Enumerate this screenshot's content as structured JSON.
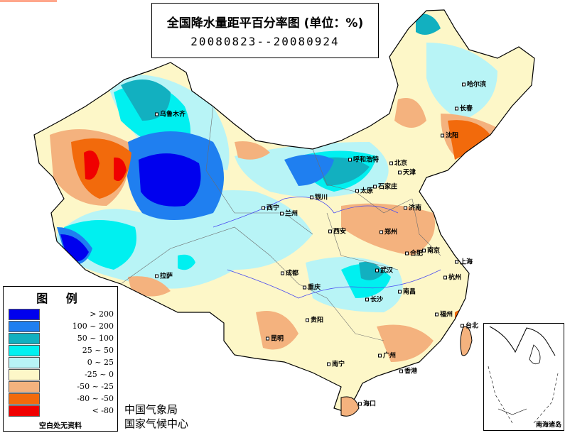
{
  "title": "全国降水量距平百分率图 (单位：%)",
  "date_range": "20080823--20080924",
  "legend": {
    "title": "图 例",
    "items": [
      {
        "range": "> 200",
        "color": "#0000ee"
      },
      {
        "range": "100 ~ 200",
        "color": "#1f7ff0"
      },
      {
        "range": "50 ~ 100",
        "color": "#12b0c0"
      },
      {
        "range": "25 ~ 50",
        "color": "#00f0f0"
      },
      {
        "range": "0 ~ 25",
        "color": "#b8f4f6"
      },
      {
        "range": "-25 ~ 0",
        "color": "#fdf7c8"
      },
      {
        "range": "-50 ~ -25",
        "color": "#f4b27e"
      },
      {
        "range": "-80 ~ -50",
        "color": "#f26a0c"
      },
      {
        "range": "< -80",
        "color": "#f00000"
      }
    ],
    "note": "空白处无资料"
  },
  "agency": {
    "line1": "中国气象局",
    "line2": "国家气候中心"
  },
  "inset_label": "南海诸岛",
  "cities": [
    {
      "name": "乌鲁木齐"
    },
    {
      "name": "哈尔滨"
    },
    {
      "name": "长春"
    },
    {
      "name": "沈阳"
    },
    {
      "name": "呼和浩特"
    },
    {
      "name": "北京"
    },
    {
      "name": "天津"
    },
    {
      "name": "石家庄"
    },
    {
      "name": "太原"
    },
    {
      "name": "济南"
    },
    {
      "name": "银川"
    },
    {
      "name": "西宁"
    },
    {
      "name": "兰州"
    },
    {
      "name": "西安"
    },
    {
      "name": "郑州"
    },
    {
      "name": "合肥"
    },
    {
      "name": "南京"
    },
    {
      "name": "上海"
    },
    {
      "name": "杭州"
    },
    {
      "name": "武汉"
    },
    {
      "name": "成都"
    },
    {
      "name": "重庆"
    },
    {
      "name": "长沙"
    },
    {
      "name": "南昌"
    },
    {
      "name": "福州"
    },
    {
      "name": "贵阳"
    },
    {
      "name": "昆明"
    },
    {
      "name": "南宁"
    },
    {
      "name": "广州"
    },
    {
      "name": "香港"
    },
    {
      "name": "海口"
    },
    {
      "name": "台北"
    },
    {
      "name": "拉萨"
    }
  ]
}
